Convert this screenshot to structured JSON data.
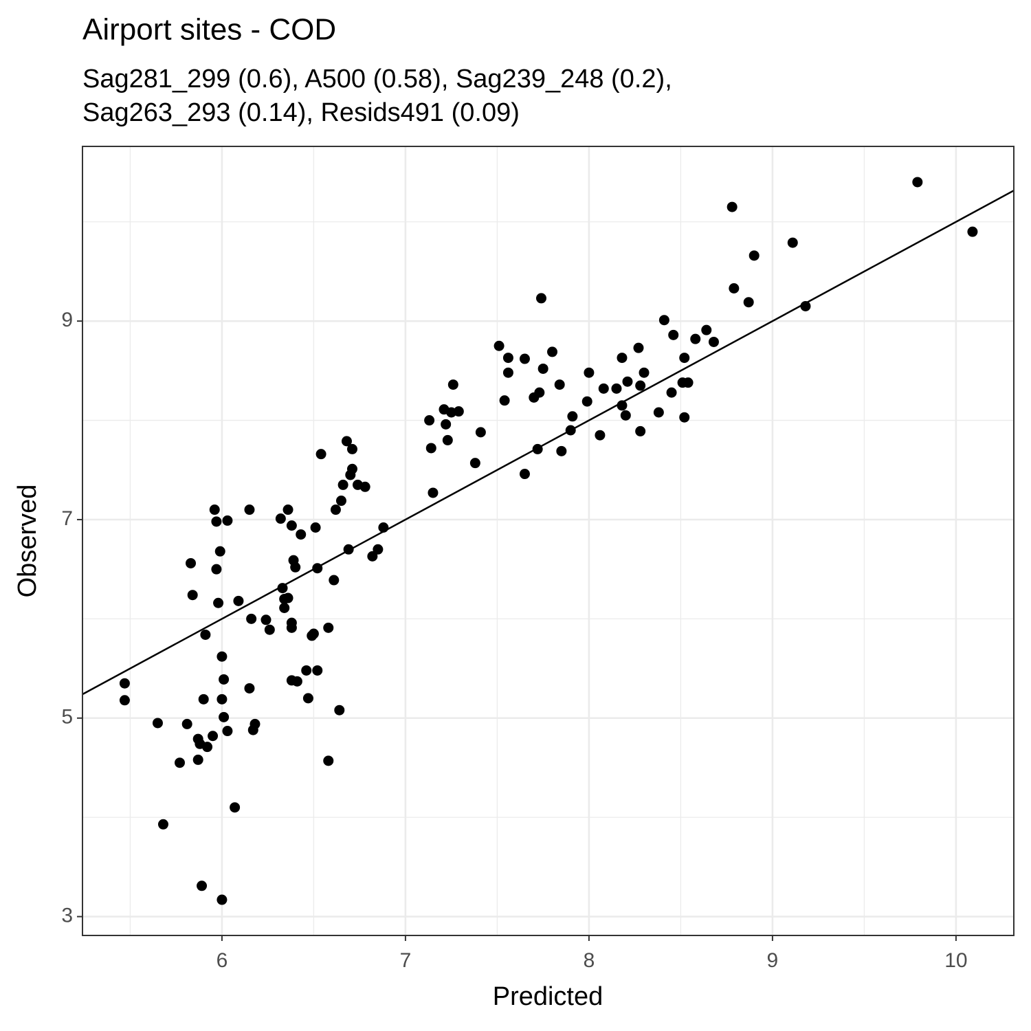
{
  "chart_data": {
    "type": "scatter",
    "title": "Airport sites - COD",
    "subtitle": [
      "Sag281_299 (0.6), A500 (0.58), Sag239_248 (0.2),",
      "Sag263_293 (0.14), Resids491 (0.09)"
    ],
    "x_label": "Predicted",
    "y_label": "Observed",
    "xlim": [
      5.24,
      10.315
    ],
    "ylim": [
      2.81,
      10.76
    ],
    "xticks": [
      6,
      7,
      8,
      9,
      10
    ],
    "yticks": [
      3,
      5,
      7,
      9
    ],
    "grid": true,
    "color": "#000000",
    "x": [
      5.47,
      5.47,
      5.65,
      5.68,
      5.77,
      5.81,
      5.83,
      5.84,
      5.87,
      5.88,
      5.87,
      5.89,
      5.9,
      5.92,
      5.91,
      5.95,
      5.96,
      5.97,
      5.97,
      5.98,
      5.99,
      6.0,
      6.0,
      6.01,
      6.01,
      6.03,
      6.03,
      6.0,
      6.07,
      6.09,
      6.15,
      6.15,
      6.16,
      6.17,
      6.18,
      6.24,
      6.26,
      6.32,
      6.33,
      6.34,
      6.34,
      6.36,
      6.36,
      6.38,
      6.38,
      6.38,
      6.38,
      6.41,
      6.39,
      6.4,
      6.43,
      6.46,
      6.47,
      6.49,
      6.5,
      6.51,
      6.52,
      6.52,
      6.54,
      6.58,
      6.58,
      6.61,
      6.62,
      6.64,
      6.65,
      6.66,
      6.68,
      6.69,
      6.7,
      6.71,
      6.71,
      6.74,
      6.78,
      6.82,
      6.85,
      6.88,
      7.13,
      7.14,
      7.15,
      7.21,
      7.22,
      7.23,
      7.25,
      7.26,
      7.29,
      7.38,
      7.41,
      7.51,
      7.54,
      7.56,
      7.56,
      7.65,
      7.65,
      7.7,
      7.72,
      7.73,
      7.74,
      7.75,
      7.8,
      7.84,
      7.85,
      7.9,
      7.91,
      7.99,
      8.0,
      8.06,
      8.08,
      8.15,
      8.18,
      8.18,
      8.2,
      8.21,
      8.27,
      8.28,
      8.28,
      8.3,
      8.38,
      8.41,
      8.45,
      8.46,
      8.51,
      8.52,
      8.52,
      8.54,
      8.58,
      8.64,
      8.68,
      8.78,
      8.79,
      8.87,
      8.9,
      9.11,
      9.18,
      9.79,
      10.09
    ],
    "y": [
      5.35,
      5.18,
      4.95,
      3.93,
      4.55,
      4.94,
      6.56,
      6.24,
      4.79,
      4.74,
      4.58,
      3.31,
      5.19,
      4.71,
      5.84,
      4.82,
      7.1,
      6.98,
      6.5,
      6.16,
      6.68,
      5.19,
      5.62,
      5.39,
      5.01,
      6.99,
      4.87,
      3.17,
      4.1,
      6.18,
      5.3,
      7.1,
      6.0,
      4.88,
      4.94,
      5.99,
      5.89,
      7.01,
      6.31,
      6.11,
      6.2,
      6.21,
      7.1,
      6.94,
      5.96,
      5.91,
      5.38,
      5.37,
      6.59,
      6.52,
      6.85,
      5.48,
      5.2,
      5.83,
      5.85,
      6.92,
      6.51,
      5.48,
      7.66,
      5.91,
      4.57,
      6.39,
      7.1,
      5.08,
      7.19,
      7.35,
      7.79,
      6.7,
      7.45,
      7.51,
      7.71,
      7.35,
      7.33,
      6.63,
      6.7,
      6.92,
      8.0,
      7.72,
      7.27,
      8.11,
      7.96,
      7.8,
      8.08,
      8.36,
      8.09,
      7.57,
      7.88,
      8.75,
      8.2,
      8.63,
      8.48,
      8.62,
      7.46,
      8.23,
      7.71,
      8.28,
      9.23,
      8.52,
      8.69,
      8.36,
      7.69,
      7.9,
      8.04,
      8.19,
      8.48,
      7.85,
      8.32,
      8.32,
      8.63,
      8.15,
      8.05,
      8.39,
      8.73,
      8.35,
      7.89,
      8.48,
      8.08,
      9.01,
      8.28,
      8.86,
      8.38,
      8.63,
      8.03,
      8.38,
      8.82,
      8.91,
      8.79,
      10.15,
      9.33,
      9.19,
      9.66,
      9.79,
      9.15,
      10.4,
      9.9
    ]
  }
}
